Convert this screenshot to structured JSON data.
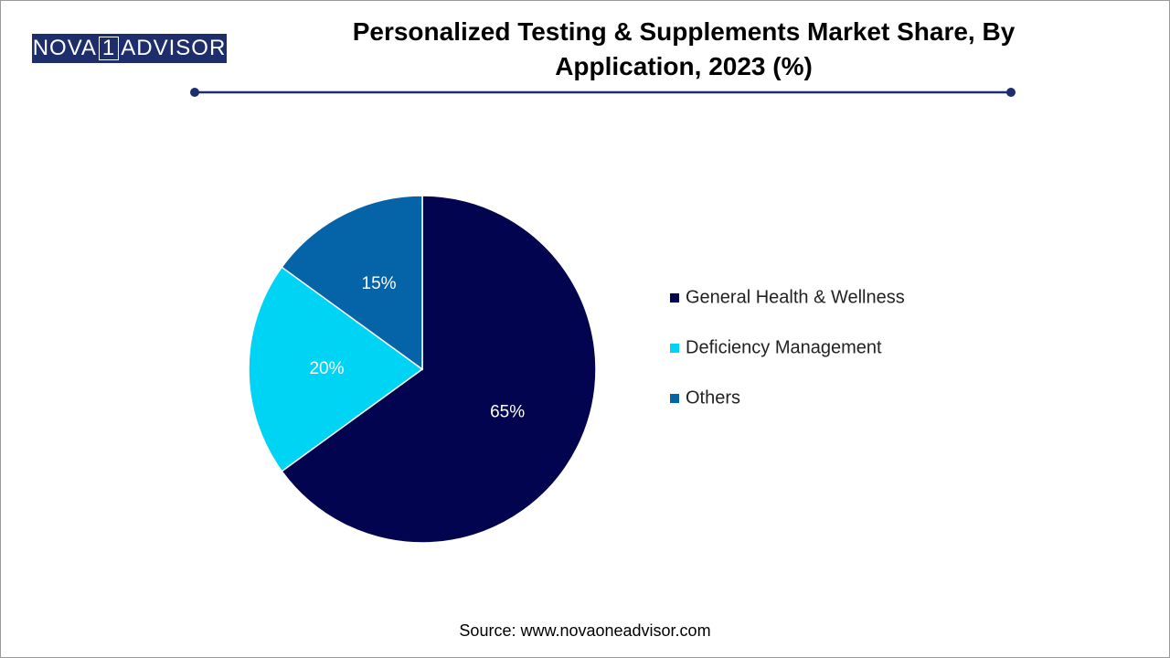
{
  "logo": {
    "left": "NOVA",
    "mark": "1",
    "right": "ADVISOR"
  },
  "chart_data": {
    "type": "pie",
    "title": "Personalized Testing & Supplements Market Share, By Application, 2023 (%)",
    "categories": [
      "General Health & Wellness",
      "Deficiency Management",
      "Others"
    ],
    "values": [
      65,
      20,
      15
    ],
    "value_labels": [
      "65%",
      "20%",
      "15%"
    ],
    "colors": [
      "#03044f",
      "#00d4f5",
      "#0563a8"
    ],
    "source": "Source: www.novaoneadvisor.com"
  }
}
